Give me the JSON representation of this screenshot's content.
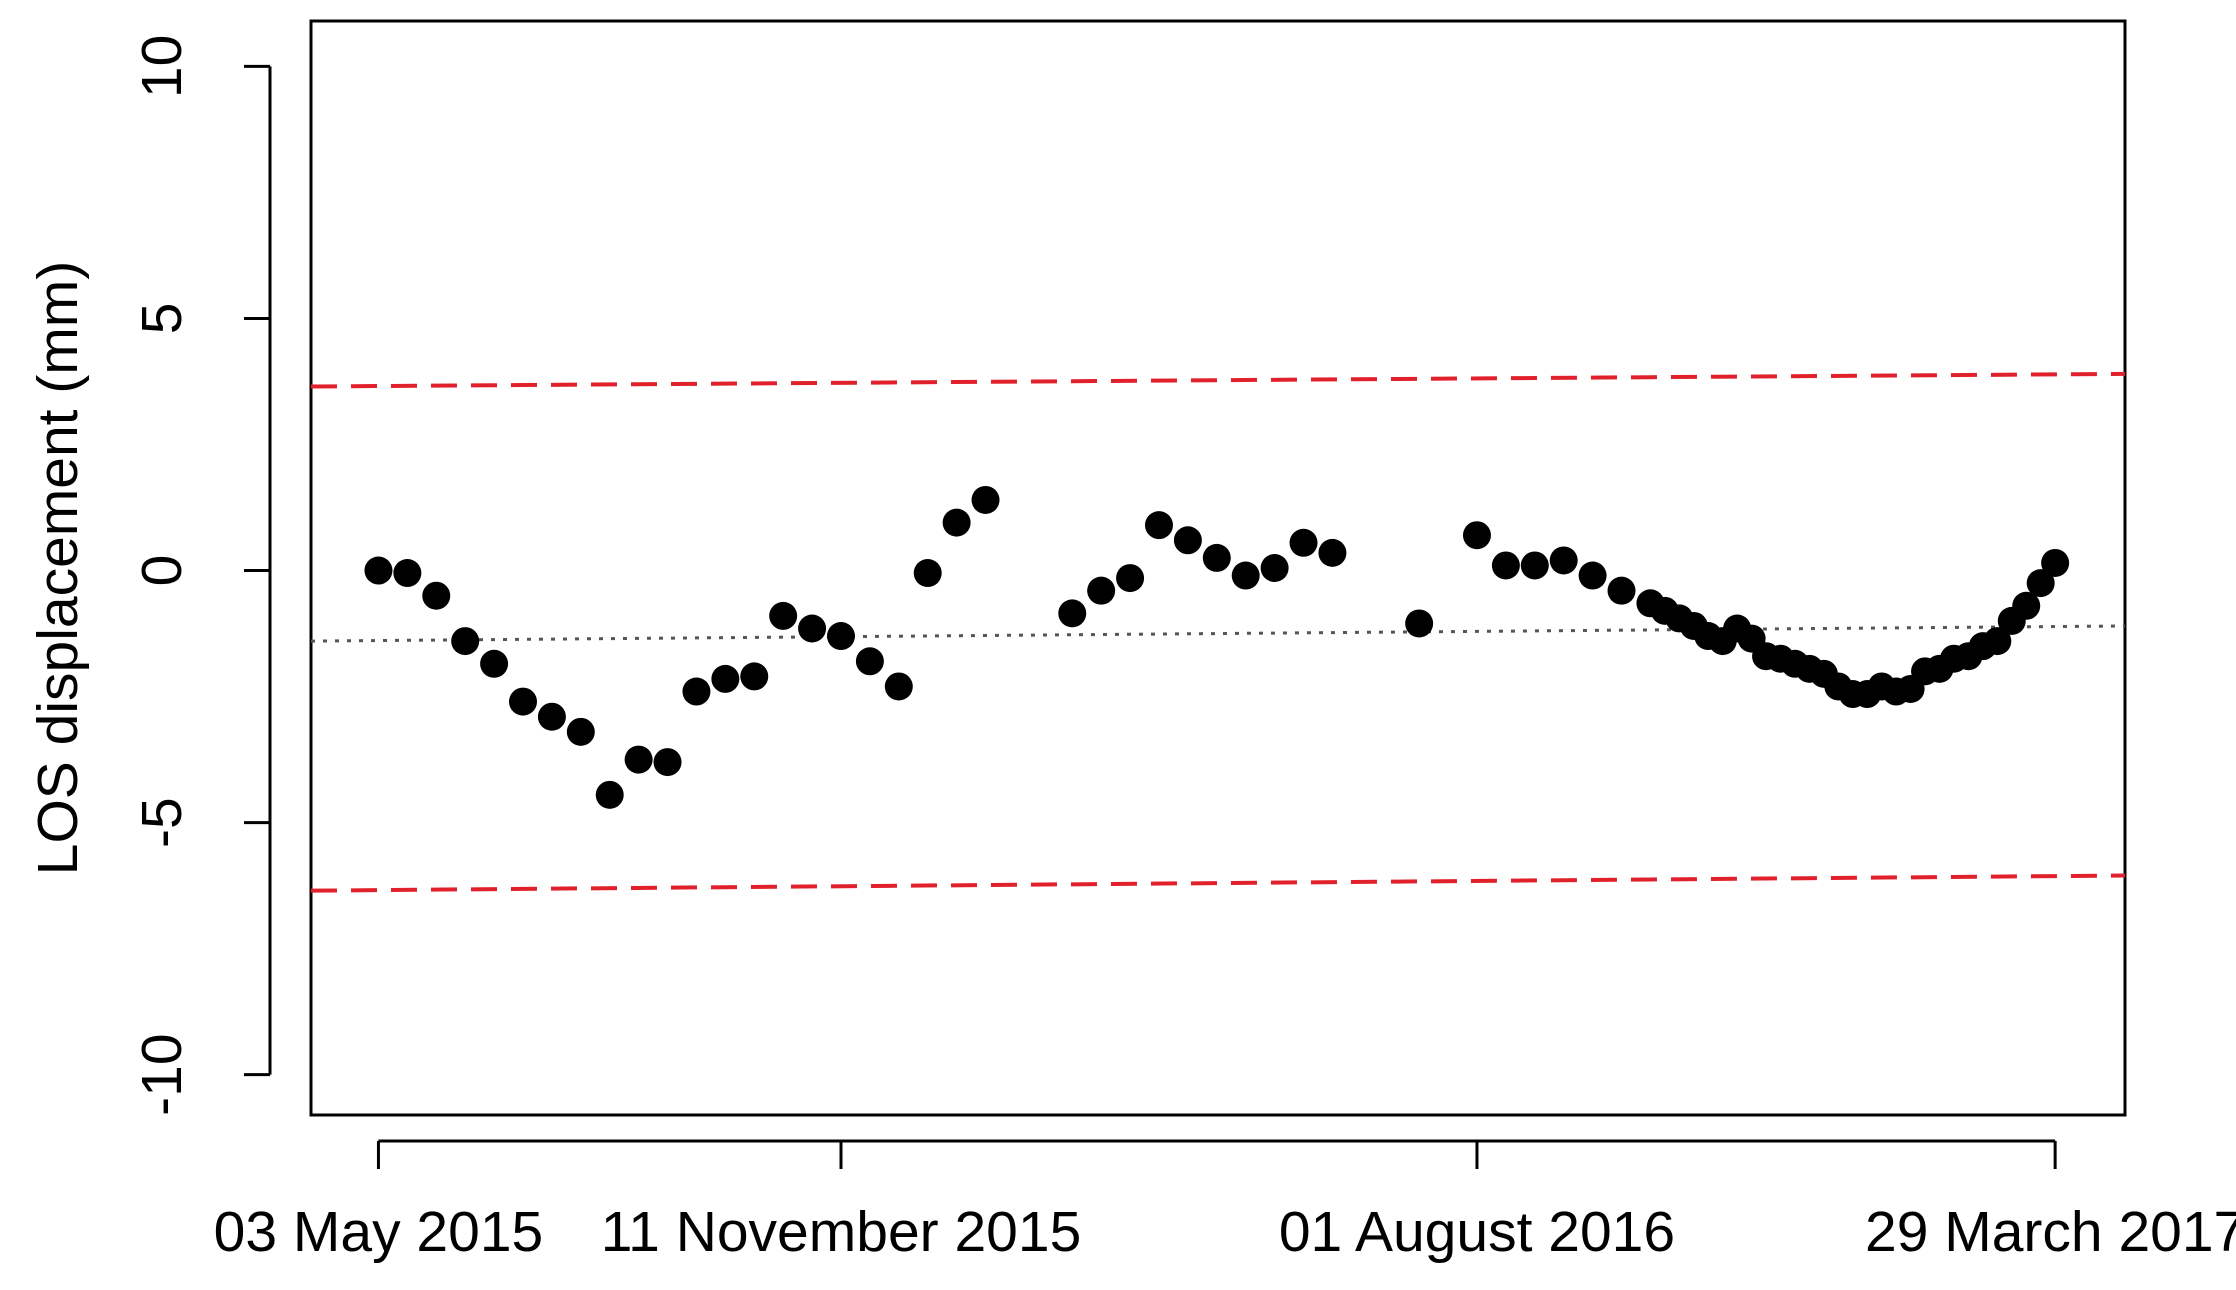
{
  "chart_data": {
    "type": "scatter",
    "y_label": "LOS displacement (mm)",
    "color": "#000000",
    "x": [
      "2015-05-03",
      "2015-05-15",
      "2015-05-27",
      "2015-06-08",
      "2015-06-20",
      "2015-07-02",
      "2015-07-14",
      "2015-07-26",
      "2015-08-07",
      "2015-08-19",
      "2015-08-31",
      "2015-09-12",
      "2015-09-24",
      "2015-10-06",
      "2015-10-18",
      "2015-10-30",
      "2015-11-11",
      "2015-11-23",
      "2015-12-05",
      "2015-12-17",
      "2015-12-29",
      "2016-01-10",
      "2016-02-15",
      "2016-02-27",
      "2016-03-10",
      "2016-03-22",
      "2016-04-03",
      "2016-04-15",
      "2016-04-27",
      "2016-05-09",
      "2016-05-21",
      "2016-06-02",
      "2016-07-08",
      "2016-08-01",
      "2016-08-13",
      "2016-08-25",
      "2016-09-06",
      "2016-09-18",
      "2016-09-30",
      "2016-10-12",
      "2016-10-18",
      "2016-10-24",
      "2016-10-30",
      "2016-11-05",
      "2016-11-11",
      "2016-11-17",
      "2016-11-23",
      "2016-11-29",
      "2016-12-05",
      "2016-12-11",
      "2016-12-17",
      "2016-12-23",
      "2016-12-29",
      "2017-01-04",
      "2017-01-10",
      "2017-01-16",
      "2017-01-22",
      "2017-01-28",
      "2017-02-03",
      "2017-02-09",
      "2017-02-15",
      "2017-02-21",
      "2017-02-27",
      "2017-03-05",
      "2017-03-11",
      "2017-03-17",
      "2017-03-23",
      "2017-03-29"
    ],
    "values": [
      0.0,
      -0.05,
      -0.5,
      -1.4,
      -1.85,
      -2.6,
      -2.9,
      -3.2,
      -4.45,
      -3.75,
      -3.8,
      -2.4,
      -2.15,
      -2.1,
      -0.9,
      -1.15,
      -1.3,
      -1.8,
      -2.3,
      -0.05,
      0.95,
      1.4,
      -0.85,
      -0.4,
      -0.15,
      0.9,
      0.6,
      0.25,
      -0.1,
      0.05,
      0.55,
      0.35,
      -1.05,
      0.7,
      0.1,
      0.1,
      0.2,
      -0.1,
      -0.4,
      -0.65,
      -0.8,
      -0.95,
      -1.1,
      -1.3,
      -1.4,
      -1.15,
      -1.35,
      -1.7,
      -1.75,
      -1.85,
      -1.95,
      -2.05,
      -2.3,
      -2.45,
      -2.45,
      -2.3,
      -2.4,
      -2.35,
      -2.0,
      -1.95,
      -1.75,
      -1.7,
      -1.5,
      -1.4,
      -1.0,
      -0.7,
      -0.25,
      0.15
    ],
    "reference_lines": [
      {
        "color": "#e0202a",
        "dash": "dashed",
        "x": [
          "2015-04-05",
          "2017-04-27"
        ],
        "values": [
          3.65,
          3.9
        ]
      },
      {
        "color": "#e0202a",
        "dash": "dashed",
        "x": [
          "2015-04-05",
          "2017-04-27"
        ],
        "values": [
          -6.35,
          -6.05
        ]
      },
      {
        "color": "#555555",
        "dash": "dotted",
        "x": [
          "2015-04-05",
          "2017-04-27"
        ],
        "values": [
          -1.4,
          -1.1
        ]
      }
    ],
    "xlim": [
      "2015-04-05",
      "2017-04-27"
    ],
    "xticks": [
      {
        "value": "2015-05-03",
        "label": "03 May 2015"
      },
      {
        "value": "2015-11-11",
        "label": "11 November 2015"
      },
      {
        "value": "2016-08-01",
        "label": "01 August 2016"
      },
      {
        "value": "2017-03-29",
        "label": "29 March 2017"
      }
    ],
    "ylim": [
      -10.8,
      10.9
    ],
    "yticks": [
      -10,
      -5,
      0,
      5,
      10
    ]
  }
}
